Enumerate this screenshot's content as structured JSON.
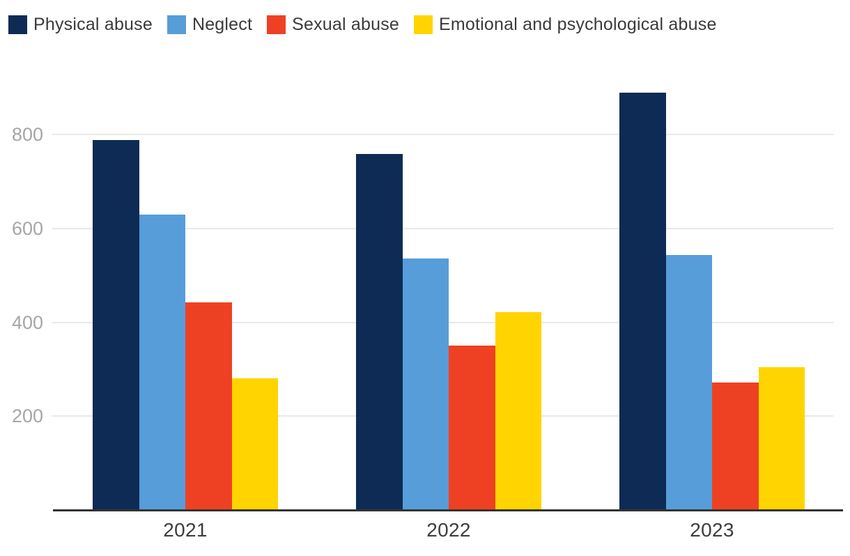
{
  "chart_data": {
    "type": "bar",
    "title": "",
    "categories": [
      "2021",
      "2022",
      "2023"
    ],
    "series": [
      {
        "name": "Physical abuse",
        "color": "#0e2b55",
        "values": [
          788,
          758,
          889
        ]
      },
      {
        "name": "Neglect",
        "color": "#579dda",
        "values": [
          629,
          536,
          543
        ]
      },
      {
        "name": "Sexual abuse",
        "color": "#ee4123",
        "values": [
          442,
          350,
          271
        ]
      },
      {
        "name": "Emotional and psychological abuse",
        "color": "#ffd400",
        "values": [
          280,
          421,
          305
        ]
      }
    ],
    "xlabel": "",
    "ylabel": "",
    "ytick_labels": [
      "200",
      "400",
      "600",
      "800"
    ],
    "yticks": [
      200,
      400,
      600,
      800
    ],
    "ylim": [
      0,
      900
    ],
    "grid": true,
    "legend_position": "top-left",
    "colors": {
      "gridline": "#e8e8e8",
      "axis_line": "#333333",
      "y_tick_text": "#a6a6a6",
      "x_tick_text": "#3d3d3d",
      "legend_text": "#3a3a3a",
      "background": "#ffffff"
    }
  }
}
